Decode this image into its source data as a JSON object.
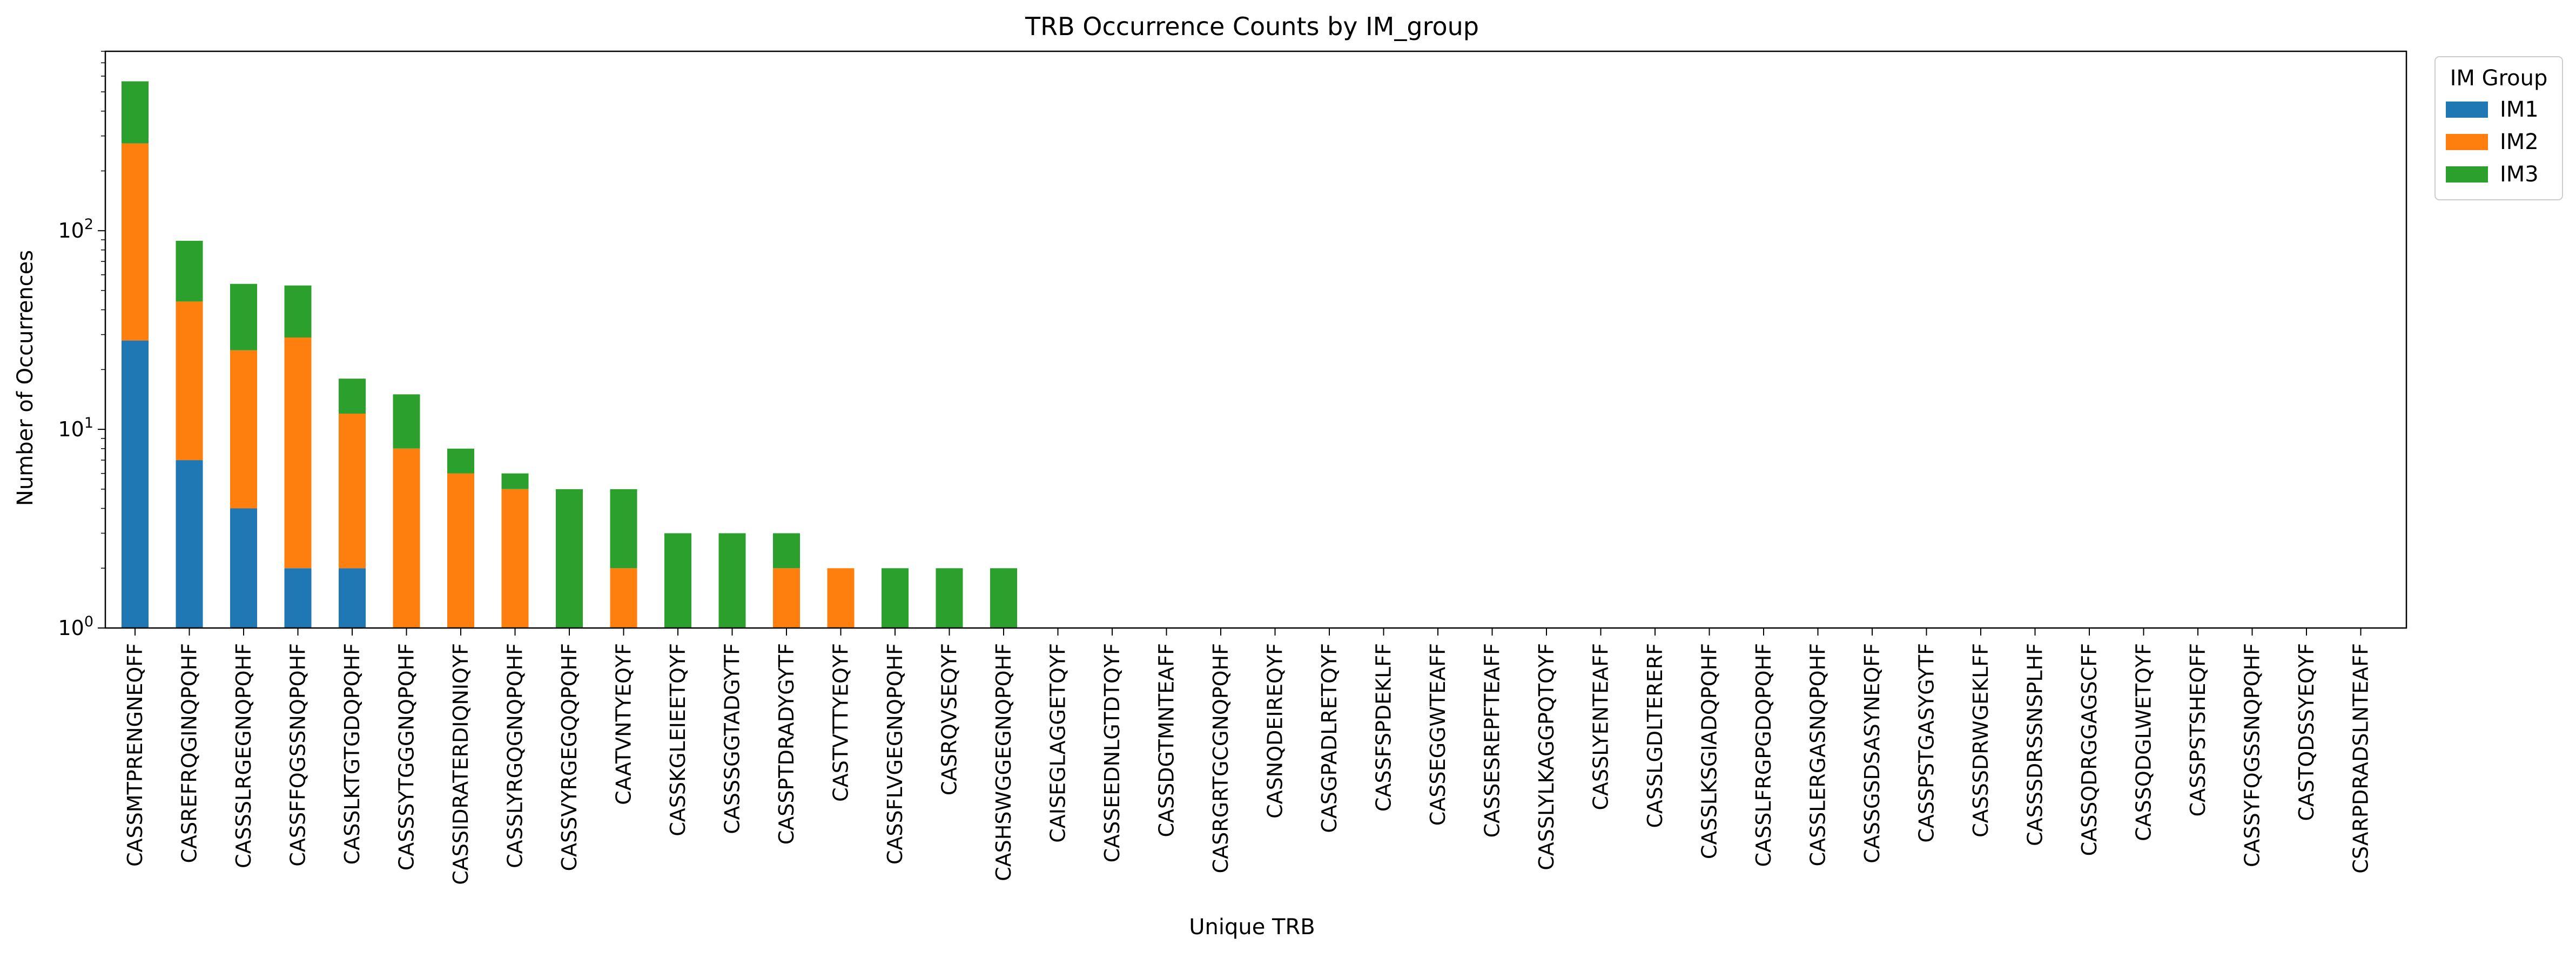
{
  "chart_data": {
    "type": "bar",
    "stacked": true,
    "title": "TRB Occurrence Counts by IM_group",
    "xlabel": "Unique TRB",
    "ylabel": "Number of Occurrences",
    "yscale": "log",
    "ylim": [
      1,
      800
    ],
    "yticks": [
      {
        "value": 1,
        "base": "10",
        "exp": "0"
      },
      {
        "value": 10,
        "base": "10",
        "exp": "1"
      },
      {
        "value": 100,
        "base": "10",
        "exp": "2"
      }
    ],
    "grid": false,
    "legend": {
      "title": "IM Group",
      "placement": "outside-top-right"
    },
    "categories": [
      "CASSMTPRENGNEQFF",
      "CASREFRQGINQPQHF",
      "CASSSLRGEGNQPQHF",
      "CASSFFQGSSNQPQHF",
      "CASSLKTGTGDQPQHF",
      "CASSSYTGGGNQPQHF",
      "CASSIDRATERDIQNIQYF",
      "CASSLYRGQGNQPQHF",
      "CASSVYRGEGQQPQHF",
      "CAATVNTYEQYF",
      "CASSKGLEIEETQYF",
      "CASSSGGTADGYTF",
      "CASSPTDRADYGYTF",
      "CASTVTTYEQYF",
      "CASSFLVGEGNQPQHF",
      "CASRQVSEQYF",
      "CASHSWGGEGNQPQHF",
      "CAISEGLAGGETQYF",
      "CASSEEDNLGTDTQYF",
      "CASSDGTMNTEAFF",
      "CASRGRTGCGNQPQHF",
      "CASNQDEIREQYF",
      "CASGPADLRETQYF",
      "CASSFSPDEKLFF",
      "CASSEGGWTEAFF",
      "CASSESREPFTEAFF",
      "CASSLYLKAGGPQTQYF",
      "CASSLYENTEAFF",
      "CASSLGDLTERERF",
      "CASSLKSGIADQPQHF",
      "CASSLFRGPGDQPQHF",
      "CASSLERGASNQPQHF",
      "CASSGSDSASYNEQFF",
      "CASSPSTGASYGYTF",
      "CASSSDRWGEKLFF",
      "CASSSDRSSNSPLHF",
      "CASSQDRGGAGSCFF",
      "CASSQDGLWETQYF",
      "CASSPSTSHEQFF",
      "CASSYFQGSSNQPQHF",
      "CASTQDSSYEQYF",
      "CSARPDRADSLNTEAFF"
    ],
    "series": [
      {
        "name": "IM1",
        "color": "#1f77b4",
        "values": [
          28,
          7,
          4,
          2,
          2,
          0,
          0,
          0,
          0,
          0,
          0,
          0,
          0,
          0,
          0,
          0,
          0,
          0,
          0,
          0,
          0,
          0,
          0,
          0,
          0,
          0,
          0,
          0,
          0,
          0,
          0,
          0,
          0,
          0,
          0,
          0,
          0,
          0,
          0,
          0,
          0,
          0
        ]
      },
      {
        "name": "IM2",
        "color": "#ff7f0e",
        "values": [
          247,
          37,
          21,
          27,
          10,
          8,
          6,
          5,
          0,
          2,
          0,
          0,
          2,
          2,
          0,
          0,
          0,
          0,
          0,
          0,
          0,
          0,
          0,
          0,
          0,
          0,
          0,
          0,
          0,
          0,
          0,
          0,
          0,
          0,
          0,
          0,
          0,
          0,
          0,
          0,
          0,
          0
        ]
      },
      {
        "name": "IM3",
        "color": "#2ca02c",
        "values": [
          290,
          45,
          29,
          24,
          6,
          7,
          2,
          1,
          5,
          3,
          3,
          3,
          1,
          0,
          2,
          2,
          2,
          1,
          1,
          1,
          1,
          1,
          1,
          1,
          1,
          1,
          1,
          1,
          1,
          1,
          1,
          1,
          1,
          1,
          1,
          1,
          1,
          1,
          1,
          1,
          1,
          1
        ]
      }
    ]
  }
}
